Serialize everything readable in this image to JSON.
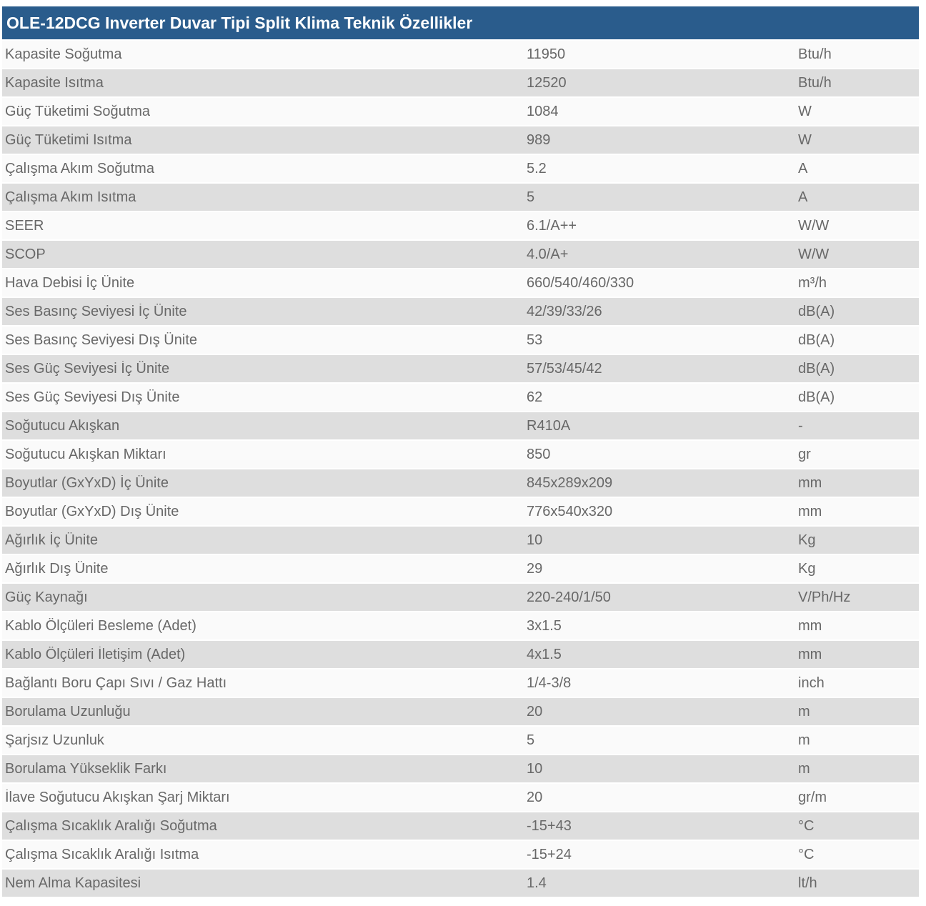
{
  "header": {
    "title": "OLE-12DCG Inverter Duvar Tipi Split Klima Teknik Özellikler"
  },
  "colors": {
    "header_bg": "#2a5c8c",
    "header_text": "#ffffff",
    "row_odd_bg": "#fafafa",
    "row_even_bg": "#dedede",
    "row_text": "#686868"
  },
  "table": {
    "rows": [
      {
        "label": "Kapasite Soğutma",
        "value": "11950",
        "unit": "Btu/h"
      },
      {
        "label": "Kapasite Isıtma",
        "value": "12520",
        "unit": "Btu/h"
      },
      {
        "label": "Güç Tüketimi Soğutma",
        "value": "1084",
        "unit": "W"
      },
      {
        "label": "Güç Tüketimi Isıtma",
        "value": "989",
        "unit": "W"
      },
      {
        "label": "Çalışma Akım Soğutma",
        "value": "5.2",
        "unit": "A"
      },
      {
        "label": "Çalışma Akım Isıtma",
        "value": "5",
        "unit": "A"
      },
      {
        "label": "SEER",
        "value": "6.1/A++",
        "unit": "W/W"
      },
      {
        "label": "SCOP",
        "value": "4.0/A+",
        "unit": "W/W"
      },
      {
        "label": "Hava Debisi İç Ünite",
        "value": "660/540/460/330",
        "unit": "m³/h"
      },
      {
        "label": "Ses Basınç Seviyesi İç Ünite",
        "value": "42/39/33/26",
        "unit": "dB(A)"
      },
      {
        "label": "Ses Basınç Seviyesi Dış Ünite",
        "value": "53",
        "unit": "dB(A)"
      },
      {
        "label": "Ses Güç Seviyesi İç Ünite",
        "value": "57/53/45/42",
        "unit": "dB(A)"
      },
      {
        "label": "Ses Güç Seviyesi Dış Ünite",
        "value": "62",
        "unit": "dB(A)"
      },
      {
        "label": "Soğutucu Akışkan",
        "value": "R410A",
        "unit": "-"
      },
      {
        "label": "Soğutucu Akışkan Miktarı",
        "value": "850",
        "unit": "gr"
      },
      {
        "label": "Boyutlar (GxYxD) İç Ünite",
        "value": "845x289x209",
        "unit": "mm"
      },
      {
        "label": "Boyutlar (GxYxD) Dış Ünite",
        "value": "776x540x320",
        "unit": "mm"
      },
      {
        "label": "Ağırlık İç Ünite",
        "value": "10",
        "unit": "Kg"
      },
      {
        "label": "Ağırlık Dış Ünite",
        "value": "29",
        "unit": "Kg"
      },
      {
        "label": "Güç Kaynağı",
        "value": "220-240/1/50",
        "unit": "V/Ph/Hz"
      },
      {
        "label": "Kablo Ölçüleri Besleme (Adet)",
        "value": "3x1.5",
        "unit": "mm"
      },
      {
        "label": "Kablo Ölçüleri İletişim (Adet)",
        "value": "4x1.5",
        "unit": "mm"
      },
      {
        "label": "Bağlantı Boru Çapı Sıvı / Gaz Hattı",
        "value": "1/4-3/8",
        "unit": "inch"
      },
      {
        "label": "Borulama Uzunluğu",
        "value": "20",
        "unit": "m"
      },
      {
        "label": "Şarjsız Uzunluk",
        "value": "5",
        "unit": "m"
      },
      {
        "label": "Borulama Yükseklik Farkı",
        "value": "10",
        "unit": "m"
      },
      {
        "label": "İlave Soğutucu Akışkan Şarj Miktarı",
        "value": "20",
        "unit": "gr/m"
      },
      {
        "label": "Çalışma Sıcaklık Aralığı Soğutma",
        "value": "-15+43",
        "unit": "°C"
      },
      {
        "label": "Çalışma Sıcaklık Aralığı Isıtma",
        "value": "-15+24",
        "unit": "°C"
      },
      {
        "label": "Nem Alma Kapasitesi",
        "value": "1.4",
        "unit": "lt/h"
      }
    ]
  }
}
